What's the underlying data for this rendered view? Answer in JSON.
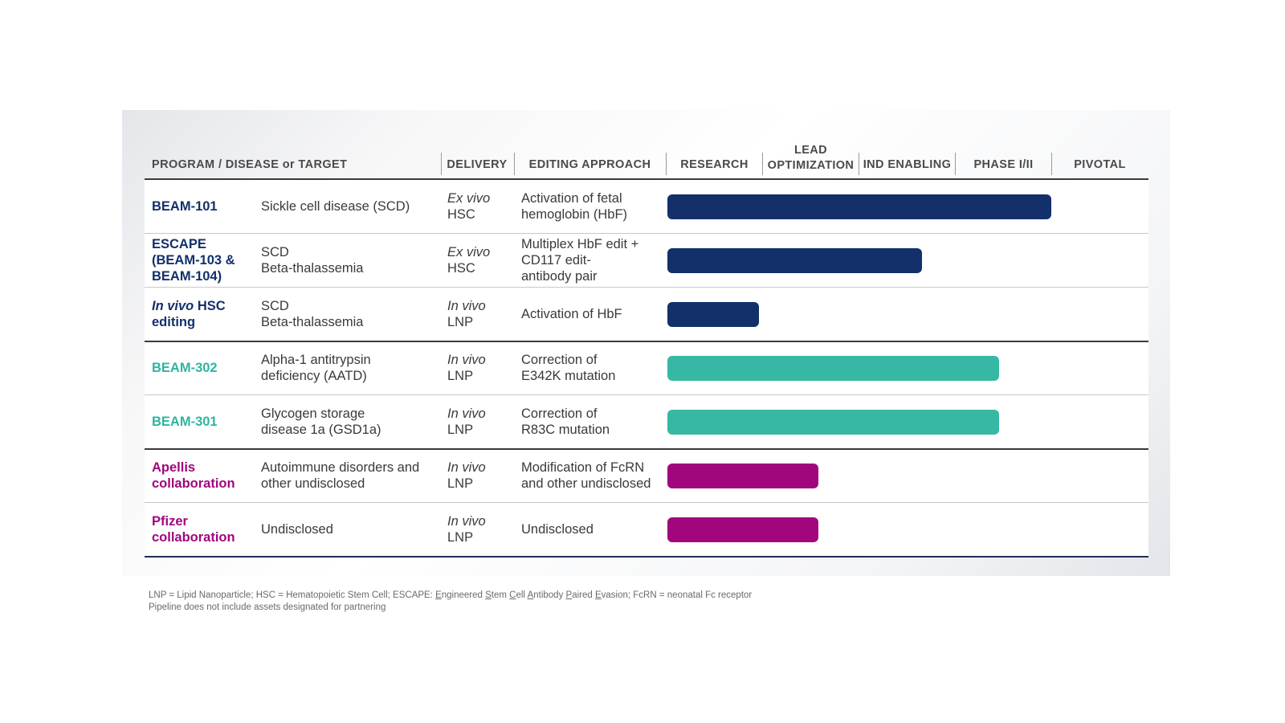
{
  "colors": {
    "navy": "#13306b",
    "teal": "#37b8a4",
    "magenta": "#a1067d"
  },
  "headers": {
    "program": "PROGRAM / DISEASE or TARGET",
    "delivery": "DELIVERY",
    "approach": "EDITING APPROACH",
    "research": "RESEARCH",
    "lead_line1": "LEAD",
    "lead_line2": "OPTIMIZATION",
    "ind": "IND ENABLING",
    "phase": "PHASE I/II",
    "pivotal": "PIVOTAL"
  },
  "rows": [
    {
      "program": [
        "BEAM-101"
      ],
      "disease": [
        "Sickle cell disease (SCD)"
      ],
      "delivery": [
        "Ex vivo",
        "HSC"
      ],
      "approach": [
        "Activation of fetal",
        "hemoglobin (HbF)"
      ]
    },
    {
      "program": [
        "ESCAPE",
        "(BEAM-103 &",
        "BEAM-104)"
      ],
      "disease": [
        "SCD",
        "Beta-thalassemia"
      ],
      "delivery": [
        "Ex vivo",
        "HSC"
      ],
      "approach": [
        "Multiplex HbF edit +",
        "CD117 edit-",
        "antibody pair"
      ]
    },
    {
      "program": [
        "In vivo",
        " HSC",
        "editing"
      ],
      "disease": [
        "SCD",
        "Beta-thalassemia"
      ],
      "delivery": [
        "In vivo",
        "LNP"
      ],
      "approach": [
        "Activation of HbF"
      ]
    },
    {
      "program": [
        "BEAM-302"
      ],
      "disease": [
        "Alpha-1 antitrypsin",
        "deficiency (AATD)"
      ],
      "delivery": [
        "In vivo",
        "LNP"
      ],
      "approach": [
        "Correction of",
        "E342K mutation"
      ]
    },
    {
      "program": [
        "BEAM-301"
      ],
      "disease": [
        "Glycogen storage",
        "disease 1a (GSD1a)"
      ],
      "delivery": [
        "In vivo",
        "LNP"
      ],
      "approach": [
        "Correction of",
        "R83C mutation"
      ]
    },
    {
      "program": [
        "Apellis",
        "collaboration"
      ],
      "disease": [
        "Autoimmune disorders and",
        "other undisclosed"
      ],
      "delivery": [
        "In vivo",
        "LNP"
      ],
      "approach": [
        "Modification of FcRN",
        "and other undisclosed"
      ]
    },
    {
      "program": [
        "Pfizer",
        "collaboration"
      ],
      "disease": [
        "Undisclosed"
      ],
      "delivery": [
        "In vivo",
        "LNP"
      ],
      "approach": [
        "Undisclosed"
      ]
    }
  ],
  "chart_data": {
    "type": "bar",
    "orientation": "horizontal",
    "stages": [
      "RESEARCH",
      "LEAD OPTIMIZATION",
      "IND ENABLING",
      "PHASE I/II",
      "PIVOTAL"
    ],
    "categories": [
      "BEAM-101",
      "ESCAPE (BEAM-103 & BEAM-104)",
      "In vivo HSC editing",
      "BEAM-302",
      "BEAM-301",
      "Apellis collaboration",
      "Pfizer collaboration"
    ],
    "values": [
      4.0,
      2.65,
      0.95,
      3.45,
      3.45,
      1.57,
      1.57
    ],
    "colors": [
      "#13306b",
      "#13306b",
      "#13306b",
      "#37b8a4",
      "#37b8a4",
      "#a1067d",
      "#a1067d"
    ],
    "xlim": [
      0,
      5
    ],
    "grid": false
  },
  "footnote": {
    "line1_a": "LNP = Lipid Nanoparticle; HSC = Hematopoietic Stem Cell; ESCAPE: ",
    "escape_letters": [
      "E",
      "ngineered ",
      "S",
      "tem ",
      "C",
      "ell ",
      "A",
      "ntibody ",
      "P",
      "aired ",
      "E",
      "vasion"
    ],
    "line1_b": "; FcRN = neonatal Fc receptor",
    "line2": "Pipeline does not include assets designated for partnering"
  }
}
